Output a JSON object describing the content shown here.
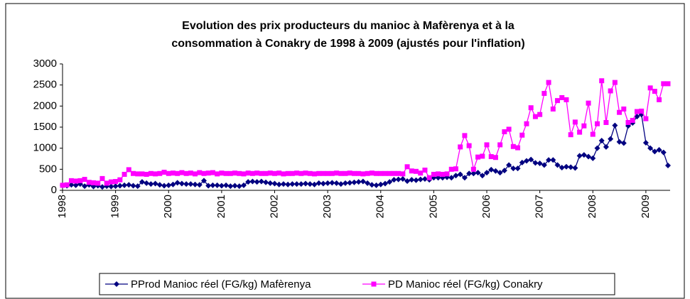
{
  "chart_data": {
    "type": "line",
    "title": [
      "Evolution des prix producteurs du manioc à Mafèrenya  et à la",
      "consommation à Conakry de 1998 à 2009 (ajustés pour l'inflation)"
    ],
    "categories": [
      "1998",
      null,
      null,
      null,
      null,
      null,
      null,
      null,
      null,
      null,
      null,
      null,
      "1999",
      null,
      null,
      null,
      null,
      null,
      null,
      null,
      null,
      null,
      null,
      null,
      "2000",
      null,
      null,
      null,
      null,
      null,
      null,
      null,
      null,
      null,
      null,
      null,
      "2001",
      null,
      null,
      null,
      null,
      null,
      null,
      null,
      null,
      null,
      null,
      null,
      "2002",
      null,
      null,
      null,
      null,
      null,
      null,
      null,
      null,
      null,
      null,
      null,
      "2003",
      null,
      null,
      null,
      null,
      null,
      null,
      null,
      null,
      null,
      null,
      null,
      "2004",
      null,
      null,
      null,
      null,
      null,
      null,
      null,
      null,
      null,
      null,
      null,
      "2005",
      null,
      null,
      null,
      null,
      null,
      null,
      null,
      null,
      null,
      null,
      null,
      "2006",
      null,
      null,
      null,
      null,
      null,
      null,
      null,
      null,
      null,
      null,
      null,
      "2007",
      null,
      null,
      null,
      null,
      null,
      null,
      null,
      null,
      null,
      null,
      null,
      "2008",
      null,
      null,
      null,
      null,
      null,
      null,
      null,
      null,
      null,
      null,
      null,
      "2009",
      null,
      null,
      null,
      null,
      null
    ],
    "series": [
      {
        "name": "PProd Manioc réel (FG/kg) Mafèrenya",
        "color": "#000080",
        "marker": "diamond",
        "values": [
          120,
          110,
          130,
          120,
          150,
          100,
          130,
          90,
          110,
          80,
          100,
          90,
          100,
          110,
          120,
          130,
          110,
          100,
          200,
          170,
          150,
          160,
          130,
          110,
          120,
          140,
          180,
          160,
          150,
          150,
          140,
          130,
          230,
          110,
          120,
          120,
          110,
          120,
          100,
          110,
          100,
          120,
          200,
          210,
          200,
          210,
          190,
          170,
          160,
          140,
          150,
          140,
          150,
          150,
          150,
          160,
          150,
          140,
          170,
          160,
          170,
          180,
          170,
          150,
          170,
          180,
          190,
          200,
          210,
          170,
          130,
          120,
          140,
          160,
          200,
          250,
          260,
          270,
          220,
          250,
          240,
          260,
          270,
          250,
          300,
          300,
          300,
          310,
          300,
          350,
          380,
          300,
          400,
          400,
          420,
          350,
          420,
          490,
          460,
          420,
          470,
          600,
          520,
          520,
          660,
          700,
          730,
          650,
          640,
          600,
          720,
          720,
          600,
          540,
          560,
          550,
          530,
          820,
          840,
          800,
          760,
          1000,
          1180,
          1030,
          1220,
          1540,
          1150,
          1120,
          1530,
          1600,
          1750,
          1800,
          1130,
          1000,
          920,
          960,
          900,
          590
        ]
      },
      {
        "name": "PD Manioc réel (FG/kg) Conakry",
        "color": "#ff00ff",
        "marker": "square",
        "values": [
          120,
          130,
          230,
          220,
          230,
          260,
          190,
          180,
          170,
          280,
          170,
          200,
          210,
          250,
          380,
          490,
          400,
          390,
          390,
          380,
          400,
          390,
          400,
          430,
          400,
          410,
          400,
          420,
          400,
          410,
          390,
          420,
          400,
          410,
          420,
          390,
          410,
          400,
          400,
          410,
          400,
          390,
          410,
          400,
          410,
          400,
          400,
          410,
          400,
          410,
          390,
          400,
          400,
          410,
          400,
          410,
          400,
          390,
          400,
          400,
          400,
          400,
          410,
          400,
          400,
          410,
          400,
          400,
          390,
          400,
          410,
          400,
          400,
          400,
          400,
          400,
          400,
          390,
          560,
          460,
          450,
          410,
          480,
          300,
          380,
          390,
          380,
          390,
          500,
          510,
          1030,
          1300,
          1060,
          500,
          790,
          810,
          1080,
          800,
          780,
          1080,
          1390,
          1450,
          1040,
          1010,
          1310,
          1580,
          1960,
          1750,
          1800,
          2300,
          2560,
          1930,
          2130,
          2200,
          2150,
          1320,
          1620,
          1380,
          1530,
          2070,
          1330,
          1580,
          2600,
          1610,
          2360,
          2560,
          1850,
          1930,
          1610,
          1660,
          1870,
          1880,
          1700,
          2430,
          2350,
          2150,
          2530,
          2530
        ]
      }
    ],
    "ylim": [
      0,
      3000
    ],
    "yticks": [
      0,
      500,
      1000,
      1500,
      2000,
      2500,
      3000
    ],
    "grid": false,
    "legend": "bottom"
  }
}
